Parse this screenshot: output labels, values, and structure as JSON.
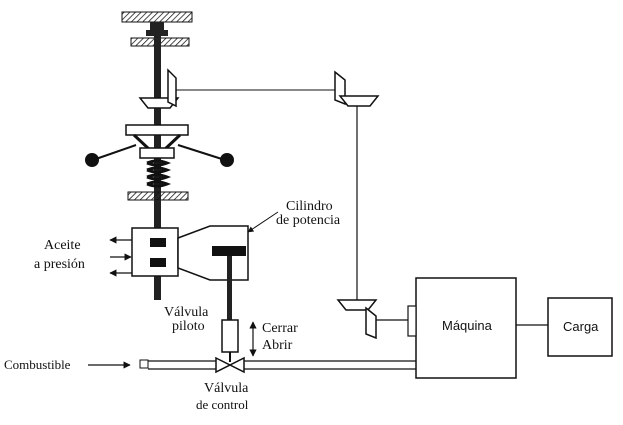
{
  "labels": {
    "cilindro_line1": "Cilindro",
    "cilindro_line2": "de potencia",
    "aceite_line1": "Aceite",
    "aceite_line2": "a  presión",
    "valvula_piloto_line1": "Válvula",
    "valvula_piloto_line2": "piloto",
    "cerrar": "Cerrar",
    "abrir": "Abrir",
    "combustible": "Combustible",
    "valvula_control_line1": "Válvula",
    "valvula_control_line2": "de control",
    "maquina": "Máquina",
    "carga": "Carga"
  }
}
